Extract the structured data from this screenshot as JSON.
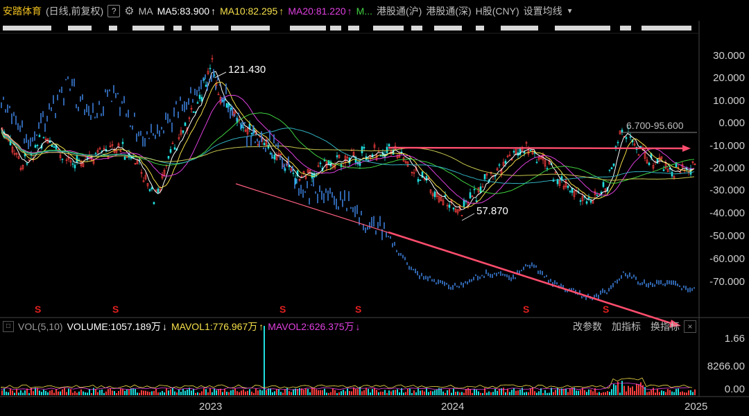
{
  "toolbar": {
    "title": "安踏体育",
    "mode": "(日线,前复权)",
    "help": "?",
    "ma_label": "MA",
    "ma5": "MA5:83.900",
    "ma10": "MA10:82.295",
    "ma20": "MA20:81.220",
    "mam": "M...",
    "hk_sh": "港股通(沪)",
    "hk_sz": "港股通(深)",
    "hshare": "H股(CNY)",
    "settings": "设置均线"
  },
  "price_axis": [
    "30.000",
    "20.000",
    "10.000",
    "0.000",
    "-10.000",
    "-20.000",
    "-30.000",
    "-40.000",
    "-50.000",
    "-60.000",
    "-70.000"
  ],
  "annotations": {
    "high": "121.430",
    "low": "57.870",
    "range": "6.700-95.600"
  },
  "volume_bar": {
    "vol_label": "VOL(5,10)",
    "volume": "VOLUME:1057.189万",
    "mavol1": "MAVOL1:776.967万",
    "mavol2": "MAVOL2:626.375万",
    "btn_params": "改参数",
    "btn_add": "加指标",
    "btn_switch": "换指标",
    "close": "×"
  },
  "volume_axis": [
    "1.66",
    "8266.00",
    "0.00"
  ],
  "x_axis": [
    "2023",
    "2024",
    "2025"
  ],
  "dividend_mark": "S",
  "colors": {
    "accent": "#f0c020",
    "trend": "#ff4d6d",
    "ma5": "#ffffff",
    "ma10": "#f6e04a",
    "ma20": "#e040e0",
    "compare": "#3b7dd8"
  }
}
